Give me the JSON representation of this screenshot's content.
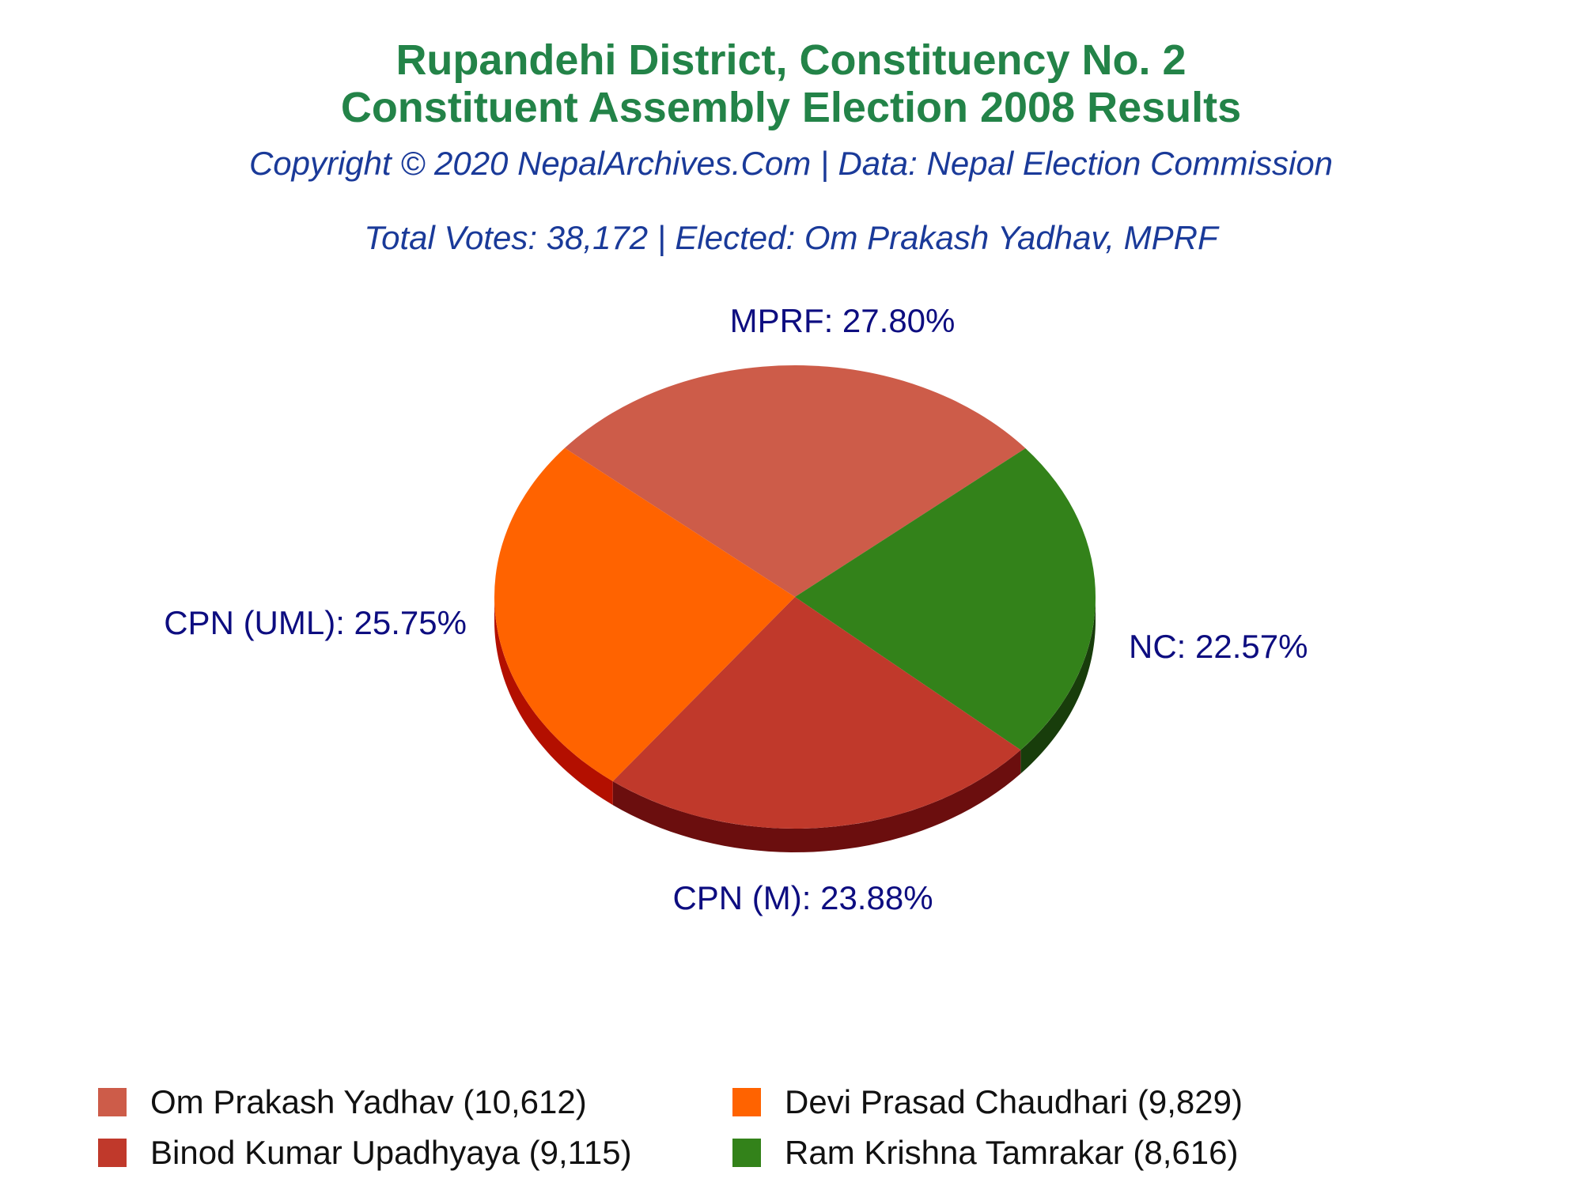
{
  "title_line1": "Rupandehi District, Constituency No. 2",
  "title_line2": "Constituent Assembly Election 2008 Results",
  "subtitle1": "Copyright © 2020 NepalArchives.Com | Data: Nepal Election Commission",
  "subtitle2": "Total Votes: 38,172 | Elected: Om Prakash Yadhav, MPRF",
  "colors": {
    "title": "#238348",
    "subtitle": "#1A3A99",
    "label": "#0D0D80"
  },
  "chart_data": {
    "type": "pie",
    "slices": [
      {
        "label": "MPRF: 27.80%",
        "party": "MPRF",
        "percent": 27.8,
        "color": "#CD5C49",
        "side_color": "#7A2A1F"
      },
      {
        "label": "NC: 22.57%",
        "party": "NC",
        "percent": 22.57,
        "color": "#33821A",
        "side_color": "#183D0B"
      },
      {
        "label": "CPN (M): 23.88%",
        "party": "CPN (M)",
        "percent": 23.88,
        "color": "#C0392B",
        "side_color": "#6B0E0E"
      },
      {
        "label": "CPN (UML): 25.75%",
        "party": "CPN (UML)",
        "percent": 25.75,
        "color": "#FF6300",
        "side_color": "#B30F00"
      }
    ],
    "legend": [
      {
        "text": "Om Prakash Yadhav (10,612)",
        "color": "#CD5C49"
      },
      {
        "text": "Devi Prasad Chaudhari (9,829)",
        "color": "#FF6300"
      },
      {
        "text": "Binod Kumar Upadhyaya (9,115)",
        "color": "#C0392B"
      },
      {
        "text": "Ram Krishna Tamrakar (8,616)",
        "color": "#33821A"
      }
    ]
  }
}
